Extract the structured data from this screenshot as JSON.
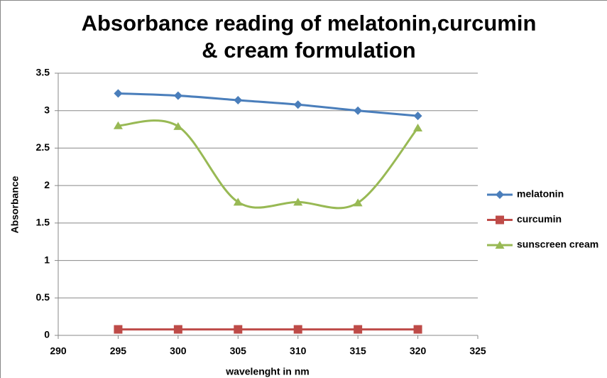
{
  "chart_data": {
    "type": "line",
    "title": "Absorbance reading of melatonin,curcumin & cream formulation",
    "x_label": "wavelenght in nm",
    "y_label": "Absorbance",
    "x": [
      295,
      300,
      305,
      310,
      315,
      320
    ],
    "series": [
      {
        "name": "melatonin",
        "color": "#4a7ebb",
        "marker": "diamond",
        "values": [
          3.23,
          3.2,
          3.14,
          3.08,
          3.0,
          2.93
        ]
      },
      {
        "name": "curcumin",
        "color": "#be4b48",
        "marker": "square",
        "values": [
          0.08,
          0.08,
          0.08,
          0.08,
          0.08,
          0.08
        ]
      },
      {
        "name": "sunscreen cream",
        "color": "#98b954",
        "marker": "triangle",
        "values": [
          2.8,
          2.79,
          1.78,
          1.78,
          1.77,
          2.77
        ]
      }
    ],
    "xlim": [
      290,
      325
    ],
    "xticks": [
      290,
      295,
      300,
      305,
      310,
      315,
      320,
      325
    ],
    "ylim": [
      0,
      3.5
    ],
    "yticks": [
      0,
      0.5,
      1,
      1.5,
      2,
      2.5,
      3,
      3.5
    ],
    "grid": true,
    "smooth": true,
    "legend": "right"
  }
}
